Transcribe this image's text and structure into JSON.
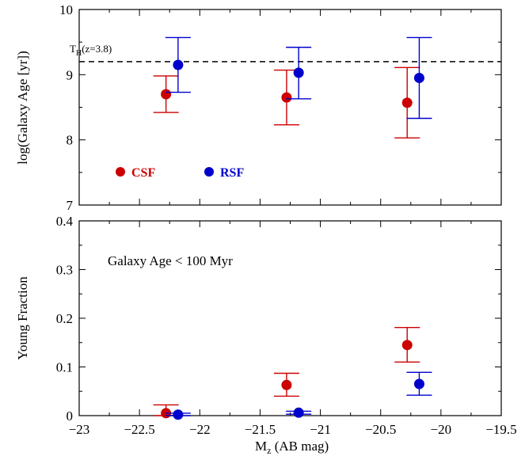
{
  "chart_data": [
    {
      "type": "scatter",
      "ylabel": "log(Galaxy Age [yr])",
      "xlim": [
        -23,
        -19.5
      ],
      "ylim": [
        7,
        10
      ],
      "x_ticks": [
        "−23",
        "−22.5",
        "−22",
        "−21.5",
        "−21",
        "−20.5",
        "−20",
        "−19.5"
      ],
      "y_ticks": [
        "7",
        "8",
        "9",
        "10"
      ],
      "reference_line": {
        "label_main": "T",
        "label_sub": "H",
        "label_rest": "(z=3.8)",
        "y": 9.2,
        "style": "dashed"
      },
      "legend": [
        {
          "label": "CSF",
          "color": "#cc0000"
        },
        {
          "label": "RSF",
          "color": "#0000cc"
        }
      ],
      "series": [
        {
          "name": "CSF",
          "color": "#cc0000",
          "points": [
            {
              "x": -22.28,
              "y": 8.7,
              "ylo": 8.42,
              "yhi": 8.98
            },
            {
              "x": -21.28,
              "y": 8.65,
              "ylo": 8.23,
              "yhi": 9.07
            },
            {
              "x": -20.28,
              "y": 8.57,
              "ylo": 8.03,
              "yhi": 9.11
            }
          ]
        },
        {
          "name": "RSF",
          "color": "#0000cc",
          "points": [
            {
              "x": -22.18,
              "y": 9.15,
              "ylo": 8.73,
              "yhi": 9.57
            },
            {
              "x": -21.18,
              "y": 9.03,
              "ylo": 8.63,
              "yhi": 9.42
            },
            {
              "x": -20.18,
              "y": 8.95,
              "ylo": 8.33,
              "yhi": 9.57
            }
          ]
        }
      ]
    },
    {
      "type": "scatter",
      "xlabel_main": "M",
      "xlabel_sub": "z",
      "xlabel_rest": " (AB mag)",
      "ylabel": "Young Fraction",
      "annotation": "Galaxy Age < 100 Myr",
      "xlim": [
        -23,
        -19.5
      ],
      "ylim": [
        0,
        0.4
      ],
      "x_ticks": [
        "−23",
        "−22.5",
        "−22",
        "−21.5",
        "−21",
        "−20.5",
        "−20",
        "−19.5"
      ],
      "y_ticks": [
        "0",
        "0.1",
        "0.2",
        "0.3",
        "0.4"
      ],
      "series": [
        {
          "name": "CSF",
          "color": "#cc0000",
          "points": [
            {
              "x": -22.28,
              "y": 0.005,
              "ylo": 0.0,
              "yhi": 0.022
            },
            {
              "x": -21.28,
              "y": 0.063,
              "ylo": 0.04,
              "yhi": 0.087
            },
            {
              "x": -20.28,
              "y": 0.145,
              "ylo": 0.11,
              "yhi": 0.181
            }
          ]
        },
        {
          "name": "RSF",
          "color": "#0000cc",
          "points": [
            {
              "x": -22.18,
              "y": 0.002,
              "ylo": 0.0,
              "yhi": 0.005
            },
            {
              "x": -21.18,
              "y": 0.006,
              "ylo": 0.003,
              "yhi": 0.009
            },
            {
              "x": -20.18,
              "y": 0.065,
              "ylo": 0.042,
              "yhi": 0.089
            }
          ]
        }
      ]
    }
  ]
}
